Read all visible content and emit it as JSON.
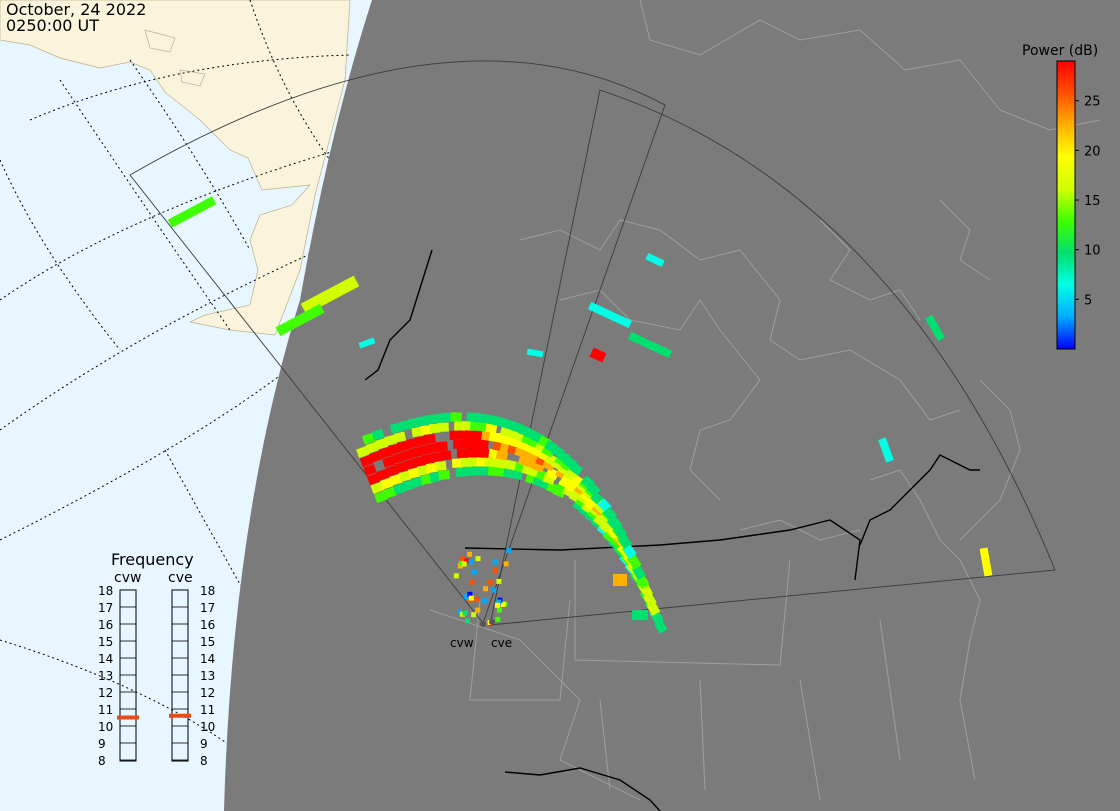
{
  "header": {
    "date": "October, 24 2022",
    "time": "0250:00 UT"
  },
  "colorbar": {
    "title": "Power (dB)",
    "ticks": [
      5,
      10,
      15,
      20,
      25
    ],
    "min": 0,
    "max": 29,
    "colors": [
      "#0000ff",
      "#00aaff",
      "#00ffe5",
      "#00e070",
      "#40ff00",
      "#d0ff00",
      "#ffff00",
      "#ffb000",
      "#ff5000",
      "#ff0000"
    ]
  },
  "frequency_panel": {
    "title": "Frequency",
    "radars": [
      {
        "code": "cvw",
        "freq_mhz": 10.5
      },
      {
        "code": "cve",
        "freq_mhz": 10.6
      }
    ],
    "ticks": [
      8,
      9,
      10,
      11,
      12,
      13,
      14,
      15,
      16,
      17,
      18
    ]
  },
  "radar_labels": [
    "cvw",
    "cve"
  ],
  "colors": {
    "ocean_day": "#e8f6ff",
    "land_day": "#fbf4dc",
    "night": "#7b7b7b",
    "coast_night": "#9e9e9e",
    "border": "#000000",
    "fov": "#3a3a3a",
    "freq_marker": "#e84a1a"
  }
}
